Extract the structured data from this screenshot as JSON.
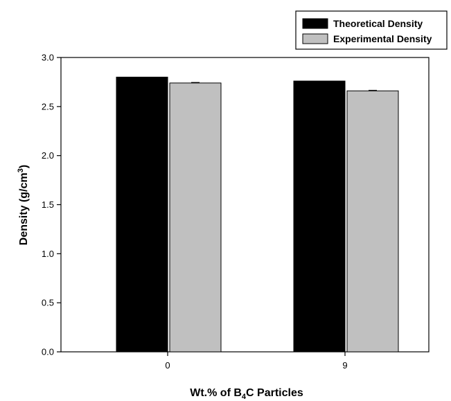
{
  "chart_data": {
    "type": "bar",
    "categories": [
      "0",
      "9"
    ],
    "series": [
      {
        "name": "Theoretical Density",
        "values": [
          2.8,
          2.76
        ],
        "errors": [
          0,
          0
        ],
        "color": "#000000"
      },
      {
        "name": "Experimental Density",
        "values": [
          2.74,
          2.66
        ],
        "errors": [
          0.005,
          0.005
        ],
        "color": "#c0c0c0"
      }
    ],
    "xlabel_parts": {
      "prefix": "Wt.% of B",
      "subscript": "4",
      "suffix": "C Particles"
    },
    "ylabel_parts": {
      "prefix": "Density (g/cm",
      "superscript": "3",
      "suffix": ")"
    },
    "yticks": [
      "0.0",
      "0.5",
      "1.0",
      "1.5",
      "2.0",
      "2.5",
      "3.0"
    ],
    "ylim": [
      0,
      3.0
    ],
    "legend_position": "top-right",
    "grid": false
  }
}
